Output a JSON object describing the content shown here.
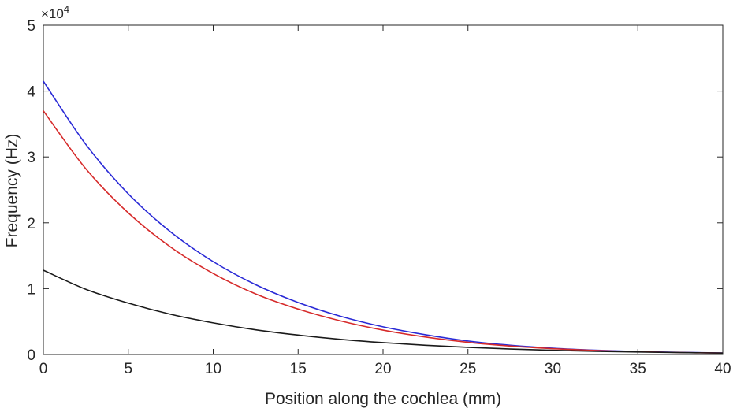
{
  "chart_data": {
    "type": "line",
    "title": "",
    "xlabel": "Position along the cochlea (mm)",
    "ylabel": "Frequency (Hz)",
    "xlim": [
      0,
      40
    ],
    "ylim": [
      0,
      50000
    ],
    "xticks": [
      0,
      5,
      10,
      15,
      20,
      25,
      30,
      35,
      40
    ],
    "yticks": [
      0,
      10000,
      20000,
      30000,
      40000,
      50000
    ],
    "xtick_labels": [
      "0",
      "5",
      "10",
      "15",
      "20",
      "25",
      "30",
      "35",
      "40"
    ],
    "ytick_labels": [
      "0",
      "1",
      "2",
      "3",
      "4",
      "5"
    ],
    "y_exponent_label": "×10",
    "y_exponent_power": "4",
    "grid": false,
    "x": [
      0,
      2.5,
      5,
      7.5,
      10,
      12.5,
      15,
      17.5,
      20,
      22.5,
      25,
      27.5,
      30,
      32.5,
      35,
      37.5,
      40
    ],
    "series": [
      {
        "name": "blue",
        "color": "#2a2ad6",
        "values": [
          41500,
          31900,
          24400,
          18600,
          14100,
          10600,
          7900,
          5800,
          4200,
          3000,
          2050,
          1400,
          950,
          650,
          450,
          320,
          240
        ]
      },
      {
        "name": "red",
        "color": "#d62a2a",
        "values": [
          37000,
          28200,
          21500,
          16300,
          12300,
          9200,
          6900,
          5100,
          3700,
          2650,
          1850,
          1280,
          880,
          600,
          420,
          300,
          220
        ]
      },
      {
        "name": "black",
        "color": "#1a1a1a",
        "values": [
          12800,
          9900,
          7800,
          6100,
          4800,
          3750,
          2950,
          2300,
          1800,
          1400,
          1080,
          830,
          640,
          490,
          380,
          290,
          220
        ]
      }
    ]
  }
}
